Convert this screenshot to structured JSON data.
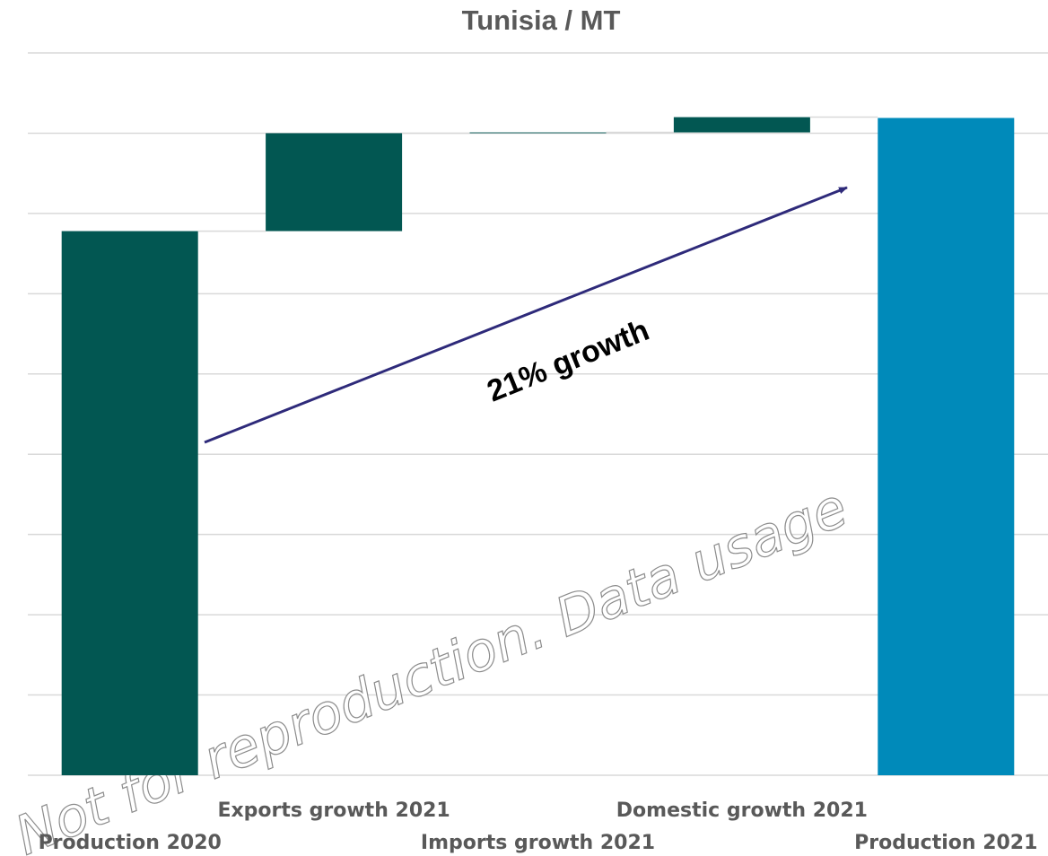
{
  "chart_data": {
    "type": "waterfall",
    "title": "Tunisia / MT",
    "categories": [
      "Production 2020",
      "Exports growth 2021",
      "Imports growth 2021",
      "Domestic growth 2021",
      "Production 2021"
    ],
    "values": [
      6.78,
      1.22,
      0.01,
      0.19,
      8.19
    ],
    "measures": [
      "total",
      "relative",
      "relative",
      "relative",
      "total"
    ],
    "colors": [
      "#025752",
      "#025752",
      "#025752",
      "#025752",
      "#008aba"
    ],
    "ylim": [
      0,
      9
    ],
    "yticks": [
      0,
      1,
      2,
      3,
      4,
      5,
      6,
      7,
      8,
      9
    ],
    "grid": true,
    "annotations": [
      "21% growth"
    ],
    "watermark": "Not for reproduction. Data usage"
  }
}
